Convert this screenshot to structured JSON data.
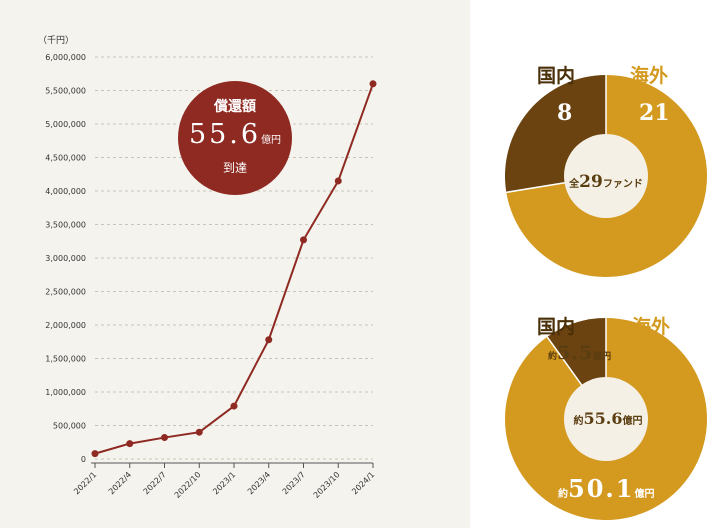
{
  "chart_data": [
    {
      "type": "line",
      "unit_label": "（千円）",
      "x": [
        "2022/1",
        "2022/4",
        "2022/7",
        "2022/10",
        "2023/1",
        "2023/4",
        "2023/7",
        "2023/10",
        "2024/1"
      ],
      "values": [
        80000,
        230000,
        320000,
        400000,
        790000,
        1780000,
        3270000,
        4150000,
        5600000
      ],
      "ylim": [
        0,
        6000000
      ],
      "yticks": [
        "6,000,000",
        "5,500,000",
        "5,000,000",
        "4,500,000",
        "4,000,000",
        "3,500,000",
        "3,000,000",
        "2,500,000",
        "2,000,000",
        "1,500,000",
        "1,000,000",
        "500,000",
        "0"
      ],
      "grid": true,
      "line_color": "#8e2a22",
      "badge": {
        "line1": "償還額",
        "value": "55.6",
        "unit": "億円",
        "line3": "到達",
        "color": "#8e2a22"
      }
    },
    {
      "type": "pie",
      "labels": [
        "国内",
        "海外"
      ],
      "values": [
        8,
        21
      ],
      "colors": [
        "#6b4310",
        "#d4991f"
      ],
      "center": {
        "prefix": "全",
        "value": "29",
        "suffix": "ファンド"
      }
    },
    {
      "type": "pie",
      "labels": [
        "国内",
        "海外"
      ],
      "values": [
        5.5,
        50.1
      ],
      "value_labels": [
        {
          "prefix": "約",
          "value": "5.5",
          "unit": "億円"
        },
        {
          "prefix": "約",
          "value": "50.1",
          "unit": "億円"
        }
      ],
      "colors": [
        "#6b4310",
        "#d4991f"
      ],
      "center": {
        "prefix": "約",
        "value": "55.6",
        "suffix": "億円"
      }
    }
  ]
}
